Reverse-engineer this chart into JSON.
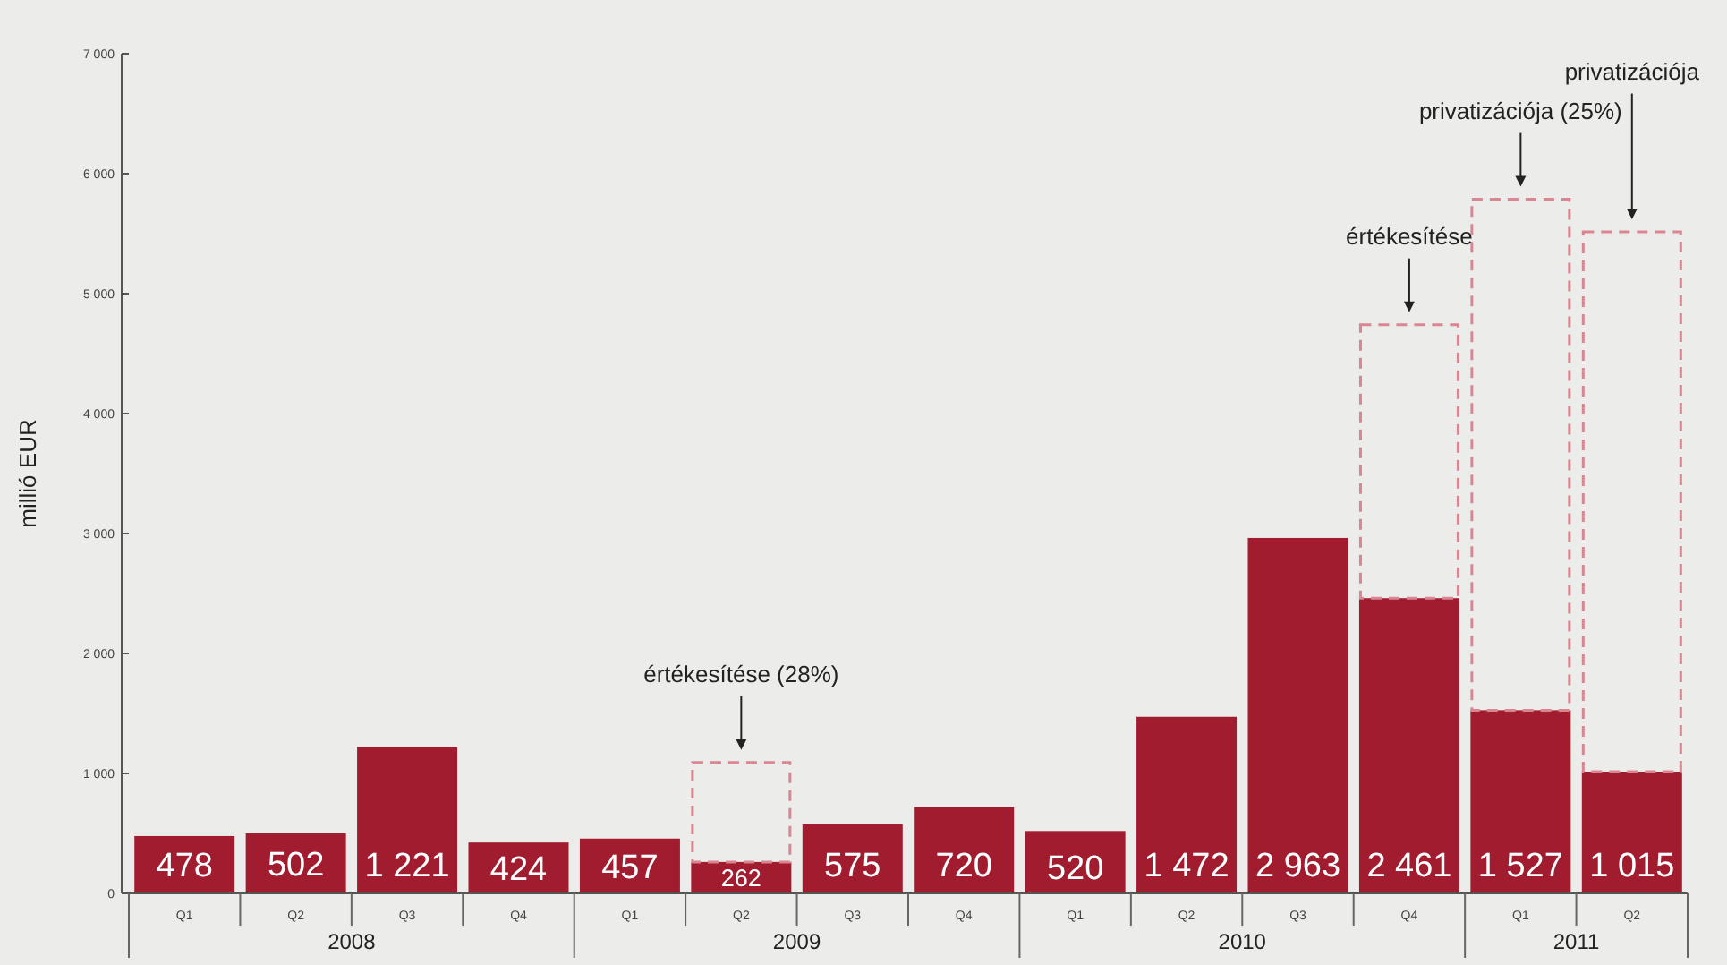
{
  "chart_data": {
    "type": "bar",
    "ylabel": "millió EUR",
    "stacked": true,
    "grid": false,
    "categories": [
      "Q1",
      "Q2",
      "Q3",
      "Q4",
      "Q1",
      "Q2",
      "Q3",
      "Q4",
      "Q1",
      "Q2",
      "Q3",
      "Q4",
      "Q1",
      "Q2"
    ],
    "series": [
      {
        "color": "#a11c2e",
        "values": [
          478,
          502,
          1221,
          424,
          457,
          262,
          575,
          720,
          520,
          1472,
          2963,
          2461,
          1527,
          1015
        ],
        "value_labels": [
          "478",
          "502",
          "1 221",
          "424",
          "457",
          "262",
          "575",
          "720",
          "520",
          "1 472",
          "2 963",
          "2 461",
          "1 527",
          "1 015"
        ]
      },
      {
        "color": "#d98592",
        "line_style": "dashed",
        "values": [
          null,
          null,
          null,
          null,
          null,
          830,
          null,
          null,
          null,
          null,
          null,
          2280,
          4260,
          4500
        ]
      }
    ],
    "ylim": [
      0,
      7000
    ],
    "yticks": [
      0,
      {
        "value": 1000,
        "label": "1 000"
      },
      {
        "value": 2000,
        "label": "2 000"
      },
      {
        "value": 3000,
        "label": "3 000"
      },
      {
        "value": 4000,
        "label": "4 000"
      },
      {
        "value": 5000,
        "label": "5 000"
      },
      {
        "value": 6000,
        "label": "6 000"
      },
      {
        "value": 7000,
        "label": "7 000"
      }
    ],
    "annotations": [
      "értékesítése (28%)",
      "értékesítése",
      "privatizációja (25%)",
      "privatizációja",
      "2008",
      "2009",
      "2010",
      "2011"
    ]
  }
}
